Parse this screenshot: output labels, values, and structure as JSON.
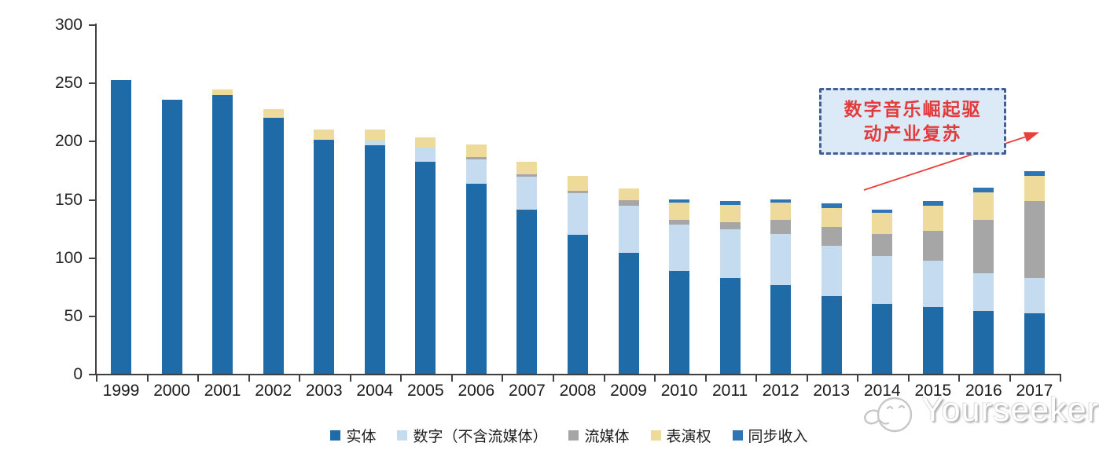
{
  "watermark": {
    "brand": "Yourseeker",
    "logo_icon": "cartoon-seeker-face-icon"
  },
  "annotation": {
    "line1": "数字音乐崛起驱",
    "line2": "动产业复苏",
    "text_color": "#E23B3C",
    "box_fill": "#DCE9F7",
    "box_border": "#3F5F95",
    "arrow_color": "#EC3E3B"
  },
  "axes": {
    "y_tick_labels": [
      "0",
      "50",
      "100",
      "150",
      "200",
      "250",
      "300"
    ],
    "axis_color": "#404040"
  },
  "chart_data": {
    "type": "bar",
    "stacked": true,
    "title": "",
    "xlabel": "",
    "ylabel": "",
    "ylim": [
      0,
      300
    ],
    "yticks": [
      0,
      50,
      100,
      150,
      200,
      250,
      300
    ],
    "grid": false,
    "legend_position": "bottom",
    "categories": [
      "1999",
      "2000",
      "2001",
      "2002",
      "2003",
      "2004",
      "2005",
      "2006",
      "2007",
      "2008",
      "2009",
      "2010",
      "2011",
      "2012",
      "2013",
      "2014",
      "2015",
      "2016",
      "2017"
    ],
    "series": [
      {
        "name": "实体",
        "color": "#1F6BA8",
        "values": [
          252,
          235,
          239,
          220,
          201,
          196,
          182,
          163,
          141,
          119,
          104,
          88,
          82,
          76,
          67,
          60,
          57,
          54,
          52
        ]
      },
      {
        "name": "数字（不含流媒体）",
        "color": "#C5DBF0",
        "values": [
          0,
          0,
          0,
          0,
          0,
          4,
          12,
          21,
          28,
          36,
          40,
          40,
          42,
          44,
          43,
          41,
          40,
          32,
          30
        ]
      },
      {
        "name": "流媒体",
        "color": "#A6A6A6",
        "values": [
          0,
          0,
          0,
          0,
          0,
          0,
          0,
          2,
          2,
          2,
          5,
          4,
          6,
          12,
          16,
          19,
          26,
          46,
          66
        ]
      },
      {
        "name": "表演权",
        "color": "#EEDA9B",
        "values": [
          0,
          0,
          5,
          7,
          9,
          10,
          9,
          11,
          11,
          13,
          10,
          15,
          15,
          15,
          16,
          18,
          21,
          24,
          22
        ]
      },
      {
        "name": "同步收入",
        "color": "#2E75B6",
        "values": [
          0,
          0,
          0,
          0,
          0,
          0,
          0,
          0,
          0,
          0,
          0,
          3,
          3,
          3,
          4,
          3,
          4,
          4,
          4
        ]
      }
    ]
  }
}
